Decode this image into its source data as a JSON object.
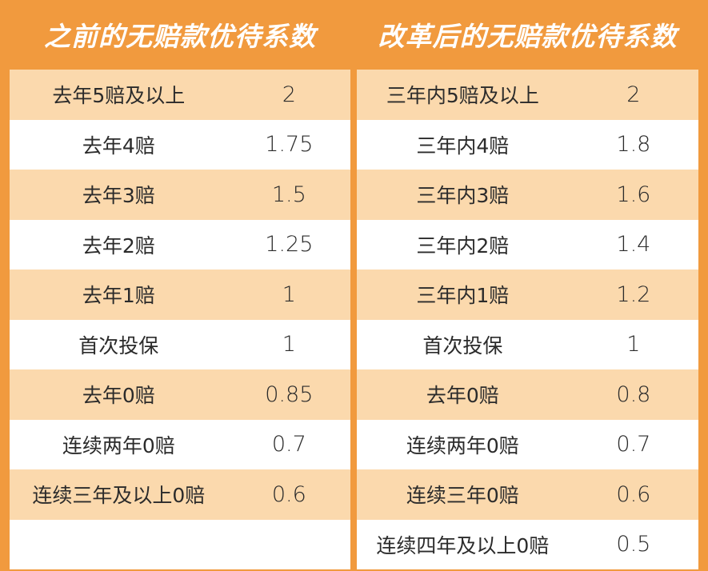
{
  "colors": {
    "frame": "#f19a3e",
    "stripe": "#fbd9ad",
    "row_white": "#ffffff",
    "header_text": "#ffffff"
  },
  "left_table": {
    "title": "之前的无赔款优待系数",
    "rows": [
      {
        "label": "去年5赔及以上",
        "value": "2"
      },
      {
        "label": "去年4赔",
        "value": "1.75"
      },
      {
        "label": "去年3赔",
        "value": "1.5"
      },
      {
        "label": "去年2赔",
        "value": "1.25"
      },
      {
        "label": "去年1赔",
        "value": "1"
      },
      {
        "label": "首次投保",
        "value": "1"
      },
      {
        "label": "去年0赔",
        "value": "0.85"
      },
      {
        "label": "连续两年0赔",
        "value": "0.7"
      },
      {
        "label": "连续三年及以上0赔",
        "value": "0.6"
      },
      {
        "label": "",
        "value": ""
      }
    ]
  },
  "right_table": {
    "title": "改革后的无赔款优待系数",
    "rows": [
      {
        "label": "三年内5赔及以上",
        "value": "2"
      },
      {
        "label": "三年内4赔",
        "value": "1.8"
      },
      {
        "label": "三年内3赔",
        "value": "1.6"
      },
      {
        "label": "三年内2赔",
        "value": "1.4"
      },
      {
        "label": "三年内1赔",
        "value": "1.2"
      },
      {
        "label": "首次投保",
        "value": "1"
      },
      {
        "label": "去年0赔",
        "value": "0.8"
      },
      {
        "label": "连续两年0赔",
        "value": "0.7"
      },
      {
        "label": "连续三年0赔",
        "value": "0.6"
      },
      {
        "label": "连续四年及以上0赔",
        "value": "0.5"
      }
    ]
  }
}
